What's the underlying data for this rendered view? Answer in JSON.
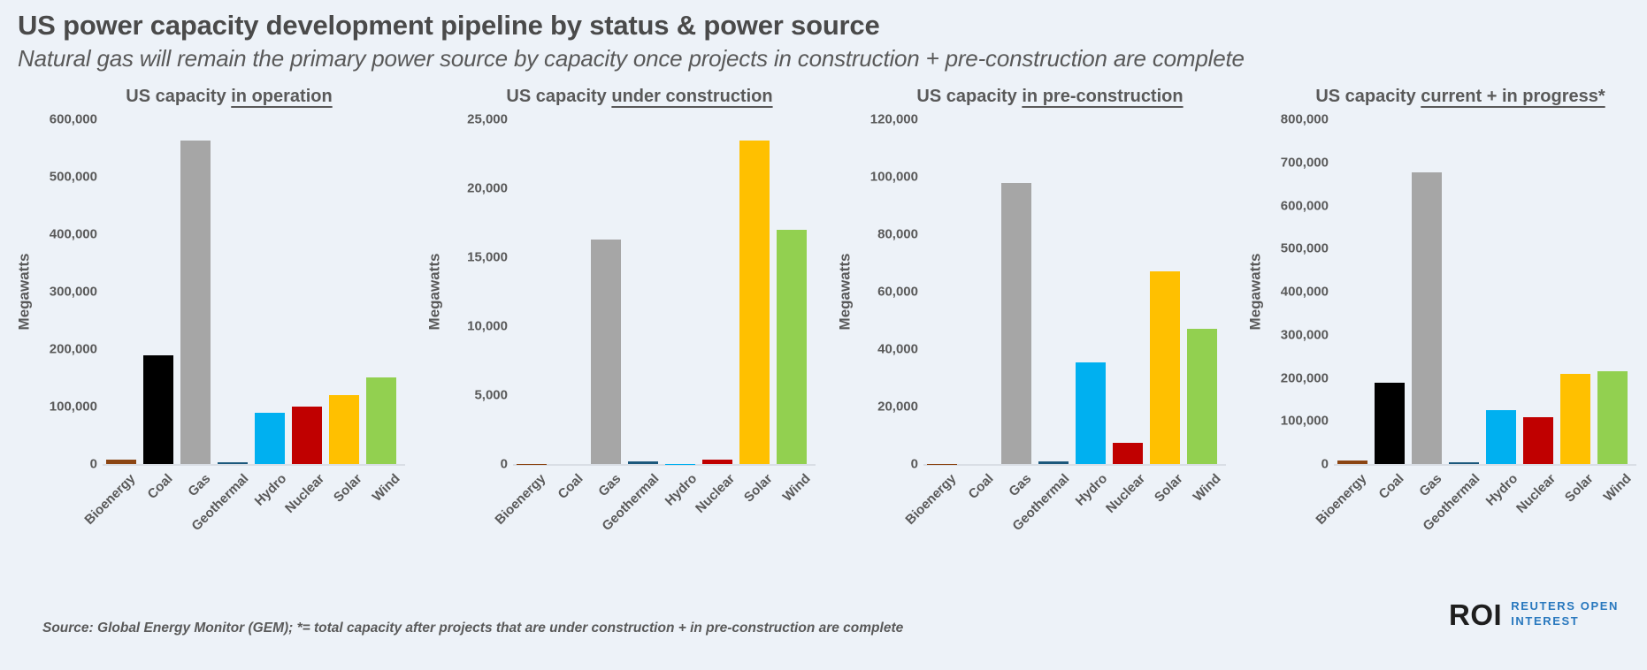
{
  "page": {
    "title": "US power capacity development pipeline by status & power source",
    "subtitle": "Natural gas will remain the primary power source by capacity once projects in construction + pre-construction are complete",
    "source_note": "Source: Global Energy Monitor (GEM); *= total capacity after projects that are under construction + in pre-construction are complete",
    "logo": {
      "abbr": "ROI",
      "line1": "REUTERS OPEN",
      "line2": "INTEREST",
      "accent_color": "#2878be",
      "abbr_color": "#1e1e1e"
    }
  },
  "palette": {
    "background": "#edf2f8",
    "axis_text": "#595959",
    "baseline": "#d9dee5",
    "bar_colors": {
      "Bioenergy": "#8b4513",
      "Coal": "#000000",
      "Gas": "#a6a6a6",
      "Geothermal": "#1b587c",
      "Hydro": "#00b0f0",
      "Nuclear": "#c00000",
      "Solar": "#ffc000",
      "Wind": "#92d050"
    }
  },
  "chart_data": [
    {
      "type": "bar",
      "title_prefix": "US capacity ",
      "title_focus": "in operation",
      "ylabel": "Megawatts",
      "categories": [
        "Bioenergy",
        "Coal",
        "Gas",
        "Geothermal",
        "Hydro",
        "Nuclear",
        "Solar",
        "Wind"
      ],
      "values": [
        8000,
        190000,
        563000,
        3000,
        90000,
        101000,
        120000,
        151000
      ],
      "ylim": [
        0,
        600000
      ],
      "ytick_step": 100000,
      "grid": false,
      "legend": "none"
    },
    {
      "type": "bar",
      "title_prefix": "US capacity ",
      "title_focus": "under construction",
      "ylabel": "Megawatts",
      "categories": [
        "Bioenergy",
        "Coal",
        "Gas",
        "Geothermal",
        "Hydro",
        "Nuclear",
        "Solar",
        "Wind"
      ],
      "values": [
        40,
        0,
        16300,
        200,
        30,
        350,
        23500,
        17000
      ],
      "ylim": [
        0,
        25000
      ],
      "ytick_step": 5000,
      "grid": false,
      "legend": "none"
    },
    {
      "type": "bar",
      "title_prefix": "US capacity ",
      "title_focus": "in pre-construction",
      "ylabel": "Megawatts",
      "categories": [
        "Bioenergy",
        "Coal",
        "Gas",
        "Geothermal",
        "Hydro",
        "Nuclear",
        "Solar",
        "Wind"
      ],
      "values": [
        200,
        0,
        98000,
        1000,
        35500,
        7300,
        67000,
        47000
      ],
      "ylim": [
        0,
        120000
      ],
      "ytick_step": 20000,
      "grid": false,
      "legend": "none"
    },
    {
      "type": "bar",
      "title_prefix": "US capacity ",
      "title_focus": "current + in progress*",
      "ylabel": "Megawatts",
      "categories": [
        "Bioenergy",
        "Coal",
        "Gas",
        "Geothermal",
        "Hydro",
        "Nuclear",
        "Solar",
        "Wind"
      ],
      "values": [
        8200,
        190000,
        677000,
        4200,
        125500,
        108500,
        210500,
        215000
      ],
      "ylim": [
        0,
        800000
      ],
      "ytick_step": 100000,
      "grid": false,
      "legend": "none"
    }
  ]
}
